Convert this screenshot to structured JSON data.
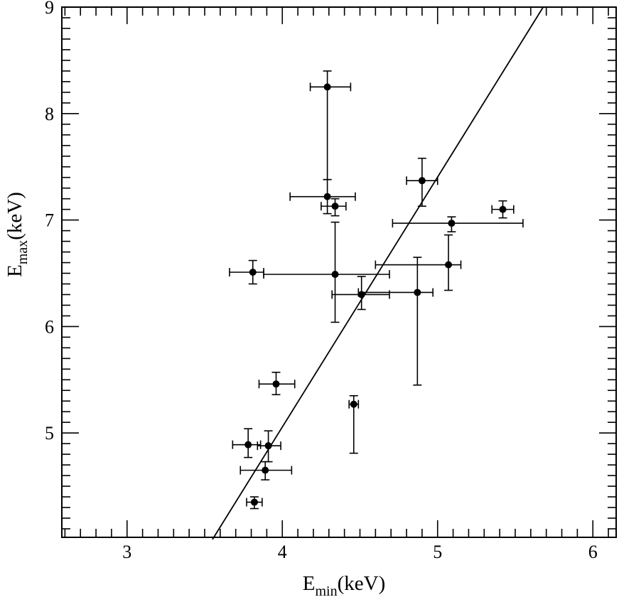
{
  "chart_data": {
    "type": "scatter",
    "title": "",
    "xlabel": {
      "main": "E",
      "sub": "min",
      "unit": "(keV)"
    },
    "ylabel": {
      "main": "E",
      "sub": "max",
      "unit": "(keV)"
    },
    "xlim": [
      2.58,
      6.15
    ],
    "ylim": [
      4.02,
      9.0
    ],
    "x_major_ticks": [
      3,
      4,
      5,
      6
    ],
    "x_tick_labels": [
      "3",
      "4",
      "5",
      "6"
    ],
    "x_minor_step": 0.1,
    "y_major_ticks": [
      5,
      6,
      7,
      8,
      9
    ],
    "y_tick_labels": [
      "5",
      "6",
      "7",
      "8",
      "9"
    ],
    "y_minor_step": 0.1,
    "grid": false,
    "legend": "none",
    "fit_line": {
      "x": [
        3.55,
        5.68
      ],
      "y": [
        4.0,
        9.0
      ]
    },
    "points": [
      {
        "x": 4.29,
        "y": 8.25,
        "x_err": [
          0.11,
          0.15
        ],
        "y_err": [
          0.87,
          0.15
        ]
      },
      {
        "x": 4.29,
        "y": 7.22,
        "x_err": [
          0.24,
          0.18
        ],
        "y_err": [
          0.16,
          0.16
        ]
      },
      {
        "x": 4.34,
        "y": 7.13,
        "x_err": [
          0.09,
          0.07
        ],
        "y_err": [
          0.09,
          0.07
        ]
      },
      {
        "x": 4.9,
        "y": 7.37,
        "x_err": [
          0.1,
          0.1
        ],
        "y_err": [
          0.24,
          0.21
        ]
      },
      {
        "x": 5.42,
        "y": 7.1,
        "x_err": [
          0.07,
          0.07
        ],
        "y_err": [
          0.08,
          0.08
        ]
      },
      {
        "x": 5.09,
        "y": 6.97,
        "x_err": [
          0.38,
          0.46
        ],
        "y_err": [
          0.08,
          0.06
        ]
      },
      {
        "x": 3.81,
        "y": 6.51,
        "x_err": [
          0.15,
          0.07
        ],
        "y_err": [
          0.11,
          0.11
        ]
      },
      {
        "x": 4.34,
        "y": 6.49,
        "x_err": [
          0.46,
          0.35
        ],
        "y_err": [
          0.45,
          0.49
        ]
      },
      {
        "x": 5.07,
        "y": 6.58,
        "x_err": [
          0.47,
          0.08
        ],
        "y_err": [
          0.24,
          0.28
        ]
      },
      {
        "x": 4.51,
        "y": 6.3,
        "x_err": [
          0.19,
          0.18
        ],
        "y_err": [
          0.14,
          0.17
        ]
      },
      {
        "x": 4.87,
        "y": 6.32,
        "x_err": [
          0.38,
          0.1
        ],
        "y_err": [
          0.87,
          0.33
        ]
      },
      {
        "x": 3.96,
        "y": 5.46,
        "x_err": [
          0.11,
          0.12
        ],
        "y_err": [
          0.1,
          0.11
        ]
      },
      {
        "x": 4.46,
        "y": 5.27,
        "x_err": [
          0.03,
          0.03
        ],
        "y_err": [
          0.46,
          0.08
        ]
      },
      {
        "x": 3.78,
        "y": 4.89,
        "x_err": [
          0.1,
          0.08
        ],
        "y_err": [
          0.12,
          0.15
        ]
      },
      {
        "x": 3.91,
        "y": 4.88,
        "x_err": [
          0.07,
          0.08
        ],
        "y_err": [
          0.15,
          0.14
        ]
      },
      {
        "x": 3.89,
        "y": 4.65,
        "x_err": [
          0.16,
          0.17
        ],
        "y_err": [
          0.09,
          0.08
        ]
      },
      {
        "x": 3.82,
        "y": 4.35,
        "x_err": [
          0.05,
          0.05
        ],
        "y_err": [
          0.06,
          0.05
        ]
      }
    ]
  }
}
